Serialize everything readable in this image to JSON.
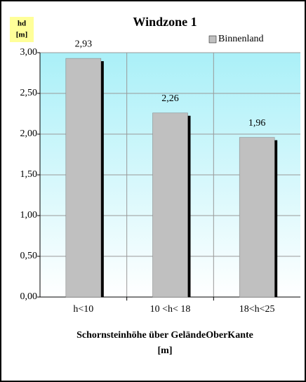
{
  "chart_data": {
    "type": "bar",
    "title": "Windzone 1",
    "ylabel": [
      "hd",
      "[m]"
    ],
    "xlabel": [
      "Schornsteinhöhe über GeländeOberKante",
      "[m]"
    ],
    "categories": [
      "h<10",
      "10 <h< 18",
      "18<h<25"
    ],
    "series": [
      {
        "name": "Binnenland",
        "color": "#c0c0c0",
        "values": [
          2.93,
          2.26,
          1.96
        ],
        "value_labels": [
          "2,93",
          "2,26",
          "1,96"
        ]
      }
    ],
    "ylim": [
      0,
      3
    ],
    "yticks": [
      {
        "value": 0,
        "label": "0,00"
      },
      {
        "value": 0.5,
        "label": "0,50"
      },
      {
        "value": 1,
        "label": "1,00"
      },
      {
        "value": 1.5,
        "label": "1,50"
      },
      {
        "value": 2,
        "label": "2,00"
      },
      {
        "value": 2.5,
        "label": "2,50"
      },
      {
        "value": 3,
        "label": "3,00"
      }
    ],
    "grid": true,
    "legend": "top-right"
  }
}
